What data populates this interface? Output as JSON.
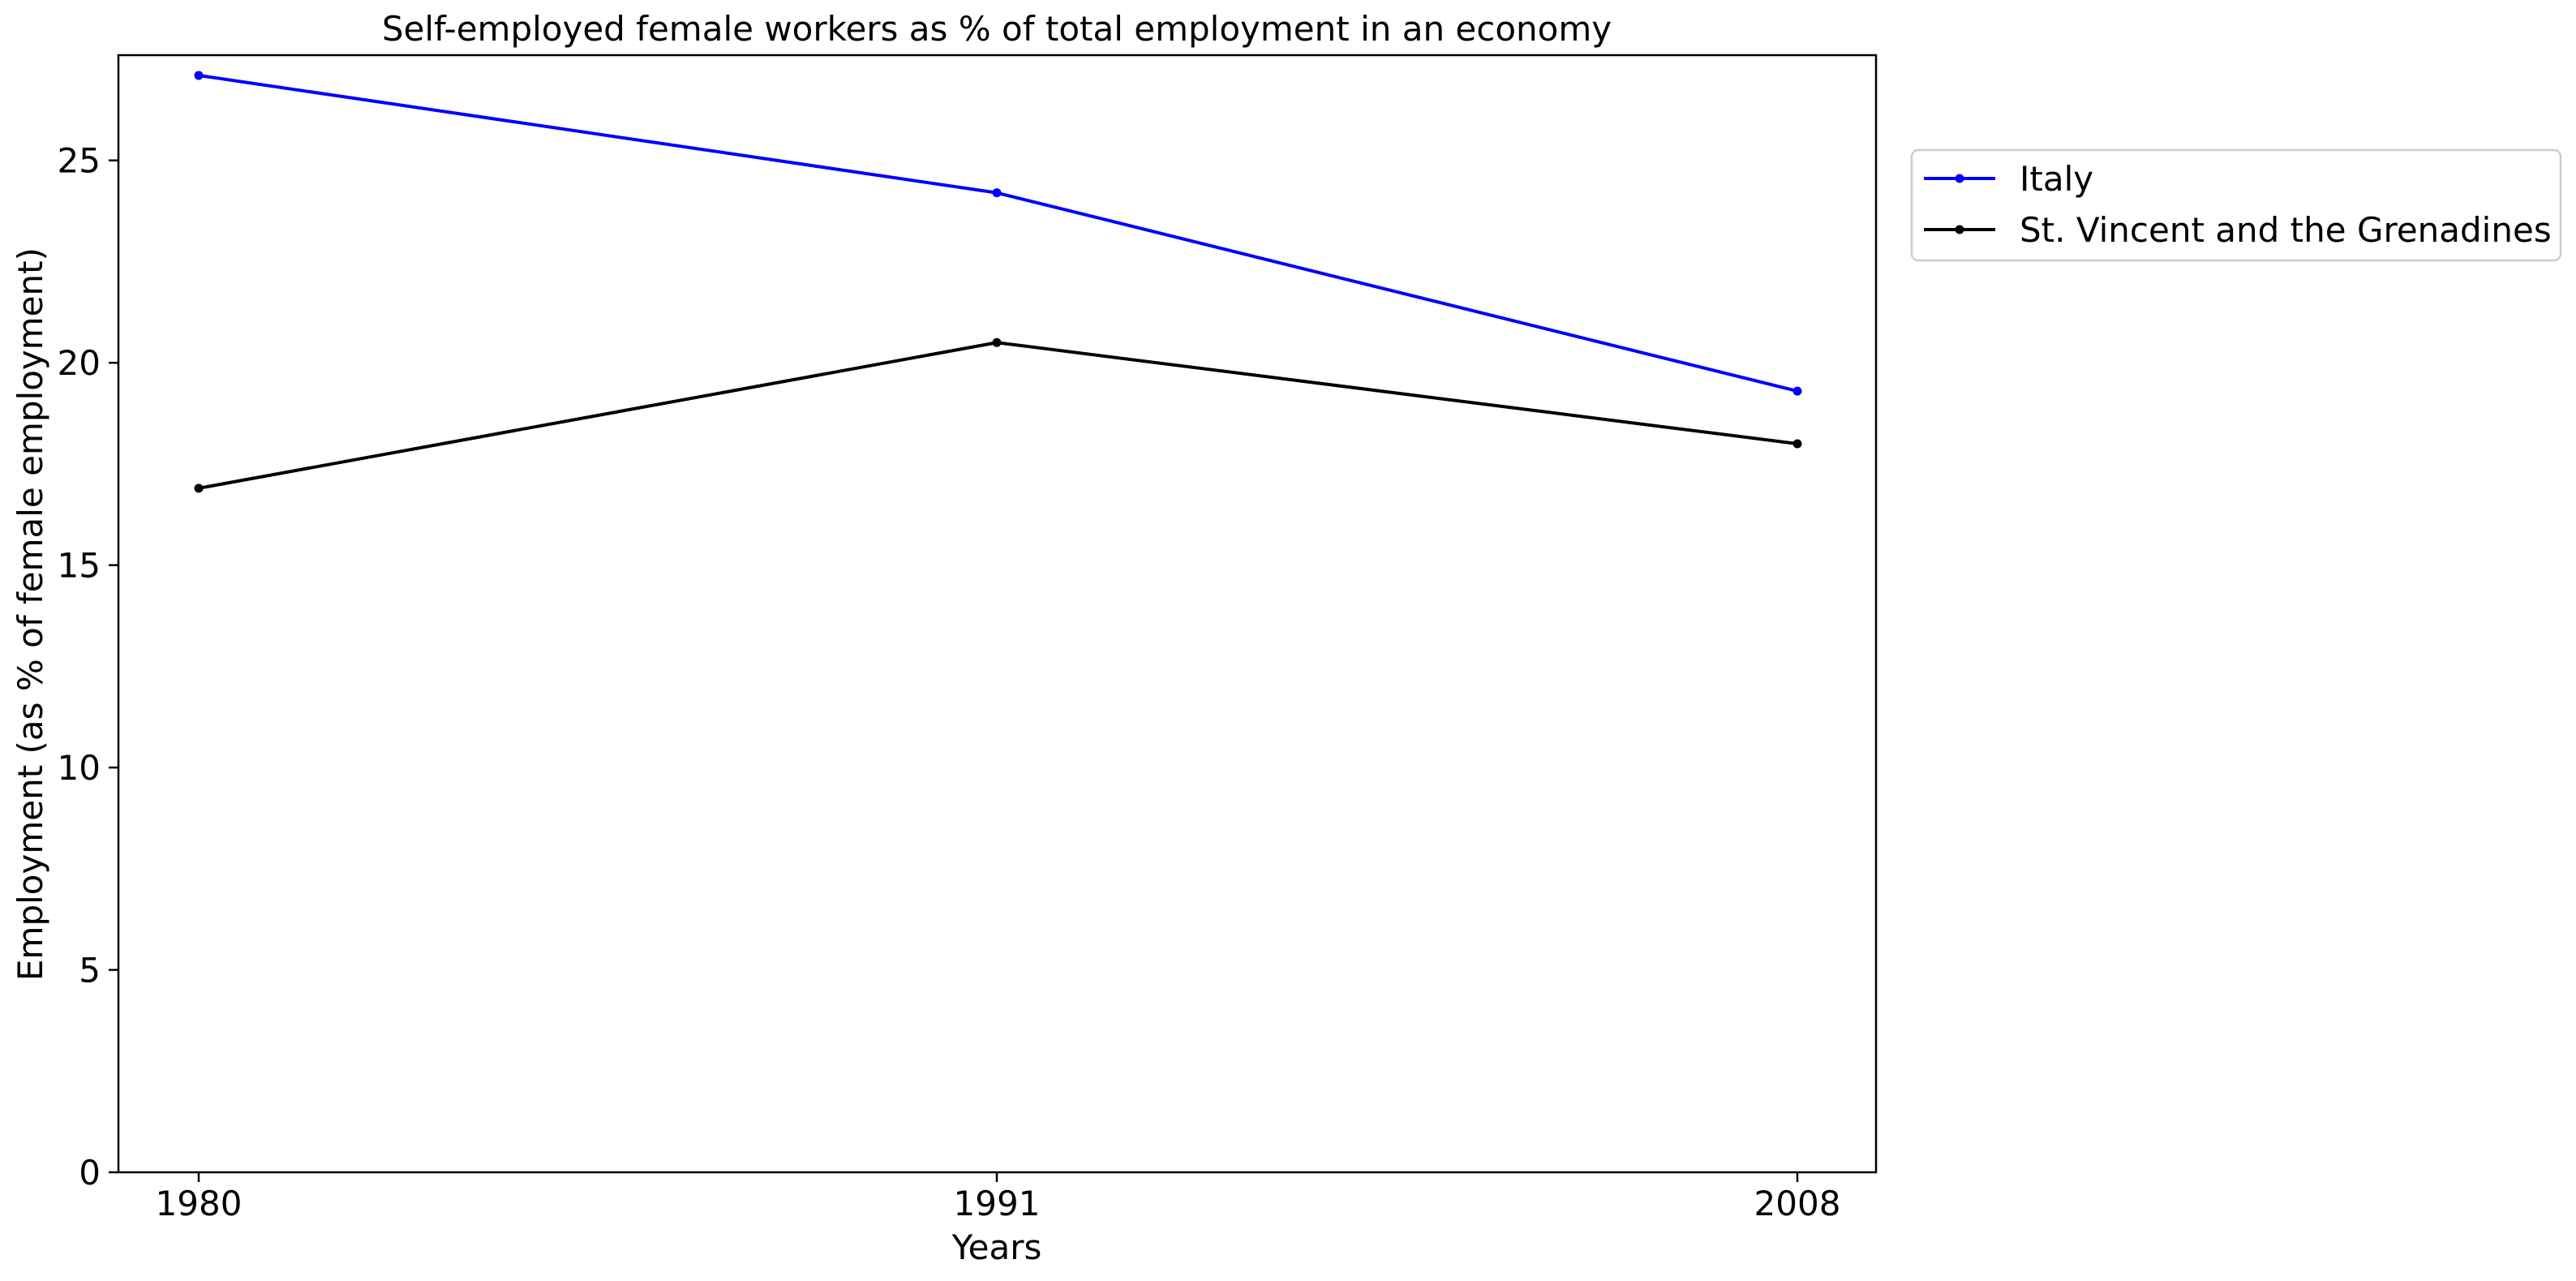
{
  "chart_data": {
    "type": "line",
    "title": "Self-employed female workers as % of total employment in an economy",
    "xlabel": "Years",
    "ylabel": "Employment (as % of female employment)",
    "categories": [
      "1980",
      "1991",
      "2008"
    ],
    "ylim": [
      0,
      27.6
    ],
    "yticks": [
      0,
      5,
      10,
      15,
      20,
      25
    ],
    "ytick_labels": [
      "0",
      "5",
      "10",
      "15",
      "20",
      "25"
    ],
    "grid": false,
    "legend_position": "outside upper right",
    "series": [
      {
        "name": "Italy",
        "color": "#0000ff",
        "marker": "dot",
        "values": [
          27.1,
          24.2,
          19.3
        ]
      },
      {
        "name": "St. Vincent and the Grenadines",
        "color": "#000000",
        "marker": "dot",
        "values": [
          16.9,
          20.5,
          18.0
        ]
      }
    ]
  }
}
